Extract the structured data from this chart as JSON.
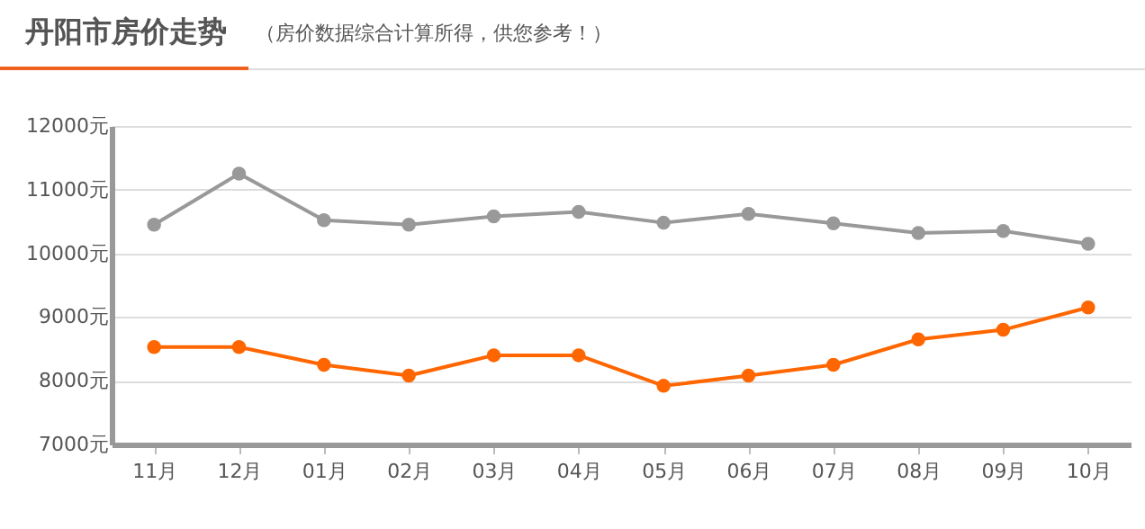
{
  "chart_data": {
    "type": "line",
    "title": "丹阳市房价走势",
    "subtitle": "（房价数据综合计算所得，供您参考！）",
    "categories": [
      "11月",
      "12月",
      "01月",
      "02月",
      "03月",
      "04月",
      "05月",
      "06月",
      "07月",
      "08月",
      "09月",
      "10月"
    ],
    "series": [
      {
        "color": "#999999",
        "values": [
          10450,
          11250,
          10520,
          10450,
          10580,
          10650,
          10480,
          10620,
          10470,
          10320,
          10350,
          10150
        ]
      },
      {
        "color": "#ff6600",
        "values": [
          8530,
          8530,
          8250,
          8080,
          8400,
          8400,
          7920,
          8080,
          8250,
          8650,
          8800,
          9150
        ]
      }
    ],
    "ylim": [
      7000,
      12000
    ],
    "yticks": [
      {
        "value": 7000,
        "label": "7000元"
      },
      {
        "value": 8000,
        "label": "8000元"
      },
      {
        "value": 9000,
        "label": "9000元"
      },
      {
        "value": 10000,
        "label": "10000元"
      },
      {
        "value": 11000,
        "label": "11000元"
      },
      {
        "value": 12000,
        "label": "12000元"
      }
    ],
    "grid": "y",
    "marker": "circle",
    "line_style": "solid",
    "legend": false
  }
}
